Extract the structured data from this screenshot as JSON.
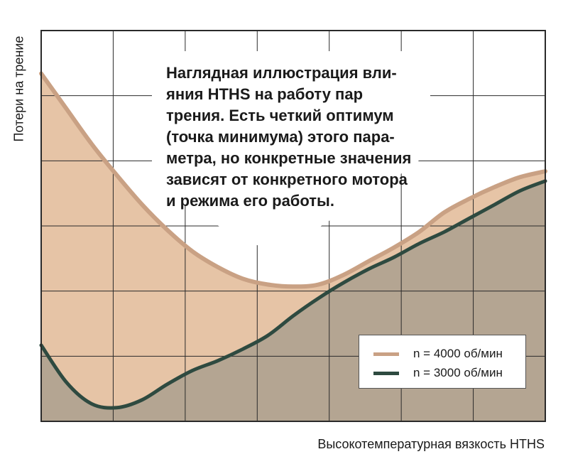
{
  "chart_data": {
    "type": "area",
    "title": "",
    "xlabel": "Высокотемпературная вязкость HTHS",
    "ylabel": "Потери на трение",
    "xlim": [
      0,
      10
    ],
    "ylim": [
      0,
      10
    ],
    "grid": true,
    "legend_position": "bottom-right",
    "annotation": [
      "Наглядная иллюстрация вли-",
      "яния HTHS на работу пар",
      "трения. Есть четкий оптимум",
      "(точка минимума) этого пара-",
      "метра, но конкретные значения",
      "зависят от конкретного мотора",
      "и режима его работы."
    ],
    "x": [
      0,
      0.5,
      1,
      1.5,
      2,
      2.5,
      3,
      3.5,
      4,
      4.5,
      5,
      5.5,
      6,
      6.5,
      7,
      7.5,
      8,
      8.5,
      9,
      9.5,
      10
    ],
    "series": [
      {
        "name": "n = 4000 об/мин",
        "color": "#c9a184",
        "fill": "#e6c4a6",
        "values": [
          8.9,
          8.0,
          7.1,
          6.3,
          5.55,
          4.9,
          4.35,
          3.95,
          3.65,
          3.5,
          3.45,
          3.5,
          3.75,
          4.1,
          4.45,
          4.85,
          5.35,
          5.7,
          6.0,
          6.25,
          6.4
        ]
      },
      {
        "name": "n = 3000 об/мин",
        "color": "#2e4a40",
        "fill": "#b4a592",
        "values": [
          1.95,
          1.0,
          0.45,
          0.35,
          0.55,
          0.95,
          1.3,
          1.55,
          1.85,
          2.2,
          2.7,
          3.15,
          3.55,
          3.9,
          4.2,
          4.55,
          4.85,
          5.2,
          5.55,
          5.9,
          6.15
        ]
      }
    ]
  }
}
